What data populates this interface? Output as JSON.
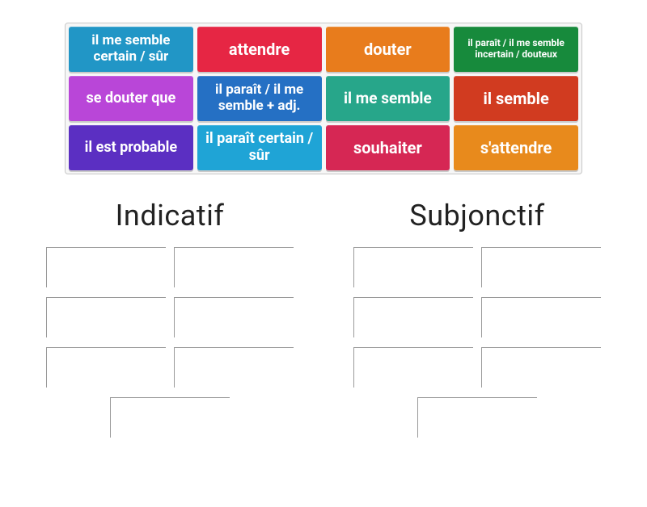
{
  "tray": {
    "tiles": [
      {
        "label": "il me semble certain / sûr",
        "color": "#2196c6",
        "fontSize": 17
      },
      {
        "label": "attendre",
        "color": "#e62644",
        "fontSize": 20
      },
      {
        "label": "douter",
        "color": "#e87c1c",
        "fontSize": 20
      },
      {
        "label": "il paraît / il me semble incertain / douteux",
        "color": "#178a3c",
        "fontSize": 12
      },
      {
        "label": "se douter que",
        "color": "#b946d8",
        "fontSize": 18
      },
      {
        "label": "il paraît / il me semble + adj.",
        "color": "#2570c4",
        "fontSize": 17
      },
      {
        "label": "il me semble",
        "color": "#27a68a",
        "fontSize": 19
      },
      {
        "label": "il semble",
        "color": "#d13b20",
        "fontSize": 20
      },
      {
        "label": "il est probable",
        "color": "#5b2fc2",
        "fontSize": 18
      },
      {
        "label": "il paraît certain / sûr",
        "color": "#1fa4d6",
        "fontSize": 18
      },
      {
        "label": "souhaiter",
        "color": "#d62754",
        "fontSize": 20
      },
      {
        "label": "s'attendre",
        "color": "#e88a1c",
        "fontSize": 20
      }
    ]
  },
  "columns": {
    "left": {
      "title": "Indicatif",
      "slots": 7
    },
    "right": {
      "title": "Subjonctif",
      "slots": 7
    }
  },
  "style": {
    "background": "#ffffff",
    "tray_border": "#c7c7c7",
    "slot_border": "#9a9a9a",
    "title_color": "#222222",
    "title_fontsize": 36
  }
}
